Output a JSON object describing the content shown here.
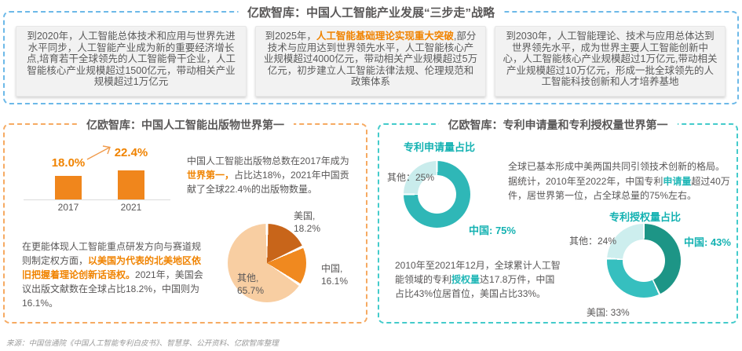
{
  "colors": {
    "orange_accent": "#f08300",
    "orange_border": "#f6aa62",
    "teal_accent": "#14b2b2",
    "teal_border": "#44cbcb",
    "blue_border": "#6db9e8",
    "text_gray": "#595757"
  },
  "header": {
    "title": "亿欧智库：中国人工智能产业发展“三步走”战略"
  },
  "roadmap": {
    "box1": {
      "text": "到2020年，人工智能总体技术和应用与世界先进水平同步，人工智能产业成为新的重要经济增长点,培育若干全球领先的人工智能骨干企业，人工智能核心产业规模超过1500亿元，带动相关产业规模超过1万亿元"
    },
    "box2": {
      "pre": "到2025年，",
      "highlight": "人工智能基础理论实现重大突破",
      "post": ",部分技术与应用达到世界领先水平，人工智能核心产业规模超过4000亿元，带动相关产业规模超过5万亿元，初步建立人工智能法律法规、伦理规范和政策体系"
    },
    "box3": {
      "text": "到2030年，人工智能理论、技术与应用总体达到世界领先水平，成为世界主要人工智能创新中心，人工智能核心产业规模超过1万亿元,带动相关产业规模超过10万亿元，形成一批全球领先的人工智能科技创新和人才培养基地"
    }
  },
  "publications": {
    "title": "亿欧智库：中国人工智能出版物世界第一",
    "bar_labels": {
      "v2017": "18.0%",
      "v2021": "22.4%",
      "y2017": "2017",
      "y2021": "2021"
    },
    "para1": {
      "pre": "中国人工智能出版物总数在2017年成为",
      "highlight": "世界第一，",
      "post": "占比达18%，2021年中国贡献了全球22.4%的出版物数量。"
    },
    "para2": {
      "pre": "在更能体现人工智能重点研发方向与赛道规则制定权方面，",
      "highlight": "以美国为代表的北美地区依旧把握着理论创新话语权。",
      "post": "2021年，美国会议出版文献数在全球占比18.2%，中国则为16.1%。"
    },
    "pie_labels": {
      "us_line1": "美国,",
      "us_line2": "18.2%",
      "cn_line1": "中国,",
      "cn_line2": "16.1%",
      "other_line1": "其他,",
      "other_line2": "65.7%"
    }
  },
  "patents": {
    "title": "亿欧智库：专利申请量和专利授权量世界第一",
    "donut1_title": "专利申请量占比",
    "donut1_labels": {
      "other": "其他：25%",
      "china": "中国: 75%"
    },
    "para1": {
      "pre": "全球已基本形成中美两国共同引领技术创新的格局。据统计，2010年至2022年，中国专利",
      "highlight": "申请量",
      "post": "超过40万件，居世界第一位，占全球总量的75%左右。"
    },
    "donut2_title": "专利授权量占比",
    "donut2_labels": {
      "other": "其他：24%",
      "china": "中国: 43%",
      "us": "美国: 33%"
    },
    "para2": {
      "pre": "2010年至2021年12月，全球累计人工智能领域的专利",
      "highlight": "授权量",
      "post": "达17.8万件，中国占比43%位居首位，美国占比33%。"
    }
  },
  "footer": {
    "source": "来源：中国信通院《中国人工智能专利白皮书》、智慧芽、公开资料、亿欧智库整理"
  },
  "chart_data": [
    {
      "type": "bar",
      "title": "中国人工智能出版物全球占比",
      "categories": [
        "2017",
        "2021"
      ],
      "values": [
        18.0,
        22.4
      ],
      "unit": "%",
      "bar_color": "#f0861c",
      "ylim": [
        0,
        25
      ],
      "grid": false
    },
    {
      "type": "pie",
      "title": "2021年会议出版文献全球占比",
      "total": 100,
      "gap_deg": 4,
      "slices": [
        {
          "label": "美国",
          "value": 18.2,
          "color": "#c8651a"
        },
        {
          "label": "中国",
          "value": 16.1,
          "color": "#f0891f"
        },
        {
          "label": "其他",
          "value": 65.7,
          "color": "#f8cea2"
        }
      ]
    },
    {
      "type": "pie",
      "title": "专利申请量占比",
      "donut": true,
      "total": 100,
      "gap_deg": 3,
      "slices": [
        {
          "label": "中国",
          "value": 75,
          "color": "#2fb7b7"
        },
        {
          "label": "其他",
          "value": 25,
          "color": "#c9ecec"
        }
      ]
    },
    {
      "type": "pie",
      "title": "专利授权量占比",
      "donut": true,
      "total": 100,
      "gap_deg": 3,
      "slices": [
        {
          "label": "中国",
          "value": 43,
          "color": "#1d9586"
        },
        {
          "label": "美国",
          "value": 33,
          "color": "#36bfbf"
        },
        {
          "label": "其他",
          "value": 24,
          "color": "#cdeeee"
        }
      ]
    }
  ]
}
